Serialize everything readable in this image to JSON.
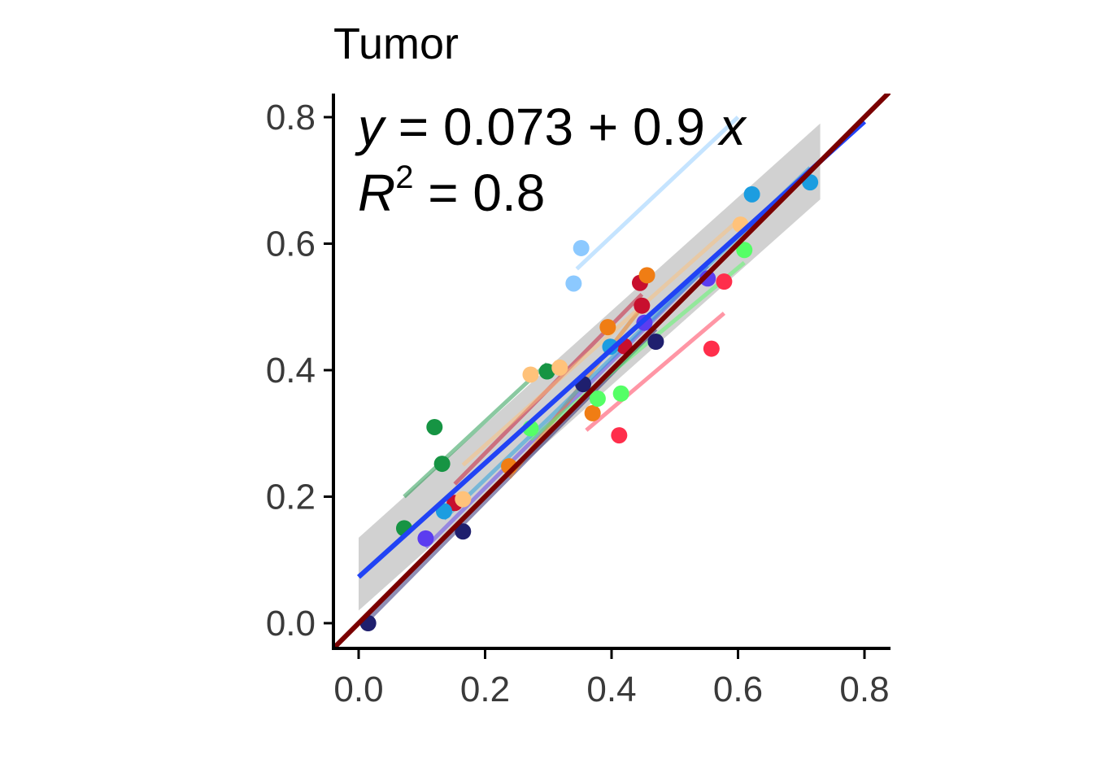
{
  "chart_data": {
    "type": "scatter",
    "title": "Tumor",
    "xlabel": "",
    "ylabel": "",
    "xlim": [
      -0.04,
      0.84
    ],
    "ylim": [
      -0.04,
      0.84
    ],
    "x_ticks": [
      "0.0",
      "0.2",
      "0.4",
      "0.6",
      "0.8"
    ],
    "y_ticks": [
      "0.0",
      "0.2",
      "0.4",
      "0.6",
      "0.8"
    ],
    "x_tick_values": [
      0.0,
      0.2,
      0.4,
      0.6,
      0.8
    ],
    "y_tick_values": [
      0.0,
      0.2,
      0.4,
      0.6,
      0.8
    ],
    "grid": false,
    "legend": "none",
    "annotation": {
      "eq_y": "y",
      "eq_equals": " = 0.073",
      "eq_plus": " + ",
      "eq_coef": "0.9 ",
      "eq_x": "x",
      "r2_r": "R",
      "r2_sup": "2",
      "r2_rest": " = 0.8"
    },
    "overall_fit": {
      "intercept": 0.073,
      "slope": 0.9,
      "x_range": [
        0.0,
        0.8
      ],
      "ci_band": {
        "x": [
          0.0,
          0.73
        ],
        "lower_at_start": 0.02,
        "upper_at_start": 0.135,
        "lower_at_end": 0.67,
        "upper_at_end": 0.79
      },
      "color": "#2143f5"
    },
    "identity_line": {
      "slope": 1,
      "intercept": 0,
      "color": "#7a0000"
    },
    "series": [
      {
        "color": "#1f1f6e",
        "points": [
          [
            0.015,
            0.0
          ],
          [
            0.165,
            0.145
          ],
          [
            0.355,
            0.378
          ],
          [
            0.47,
            0.445
          ]
        ],
        "fit": [
          [
            0.015,
            0.005
          ],
          [
            0.47,
            0.465
          ]
        ]
      },
      {
        "color": "#169443",
        "points": [
          [
            0.072,
            0.15
          ],
          [
            0.12,
            0.31
          ],
          [
            0.132,
            0.252
          ],
          [
            0.298,
            0.398
          ]
        ],
        "fit": [
          [
            0.072,
            0.2
          ],
          [
            0.298,
            0.41
          ]
        ]
      },
      {
        "color": "#5b3df0",
        "points": [
          [
            0.106,
            0.134
          ],
          [
            0.452,
            0.475
          ],
          [
            0.552,
            0.545
          ]
        ],
        "fit": [
          [
            0.106,
            0.12
          ],
          [
            0.552,
            0.565
          ]
        ]
      },
      {
        "color": "#c80f2e",
        "points": [
          [
            0.152,
            0.19
          ],
          [
            0.42,
            0.438
          ],
          [
            0.445,
            0.538
          ],
          [
            0.448,
            0.502
          ]
        ],
        "fit": [
          [
            0.152,
            0.22
          ],
          [
            0.448,
            0.52
          ]
        ]
      },
      {
        "color": "#f07d14",
        "points": [
          [
            0.238,
            0.248
          ],
          [
            0.37,
            0.332
          ],
          [
            0.394,
            0.468
          ],
          [
            0.456,
            0.55
          ]
        ],
        "fit": [
          [
            0.238,
            0.23
          ],
          [
            0.456,
            0.51
          ]
        ]
      },
      {
        "color": "#ffc27a",
        "points": [
          [
            0.165,
            0.196
          ],
          [
            0.272,
            0.393
          ],
          [
            0.318,
            0.404
          ],
          [
            0.604,
            0.63
          ]
        ],
        "fit": [
          [
            0.165,
            0.25
          ],
          [
            0.604,
            0.64
          ]
        ]
      },
      {
        "color": "#ff2e4b",
        "points": [
          [
            0.412,
            0.297
          ],
          [
            0.558,
            0.434
          ],
          [
            0.578,
            0.54
          ]
        ],
        "fit": [
          [
            0.36,
            0.305
          ],
          [
            0.578,
            0.49
          ]
        ]
      },
      {
        "color": "#55ff66",
        "points": [
          [
            0.272,
            0.308
          ],
          [
            0.378,
            0.355
          ],
          [
            0.415,
            0.363
          ],
          [
            0.61,
            0.59
          ]
        ],
        "fit": [
          [
            0.272,
            0.29
          ],
          [
            0.61,
            0.57
          ]
        ]
      },
      {
        "color": "#1c9de0",
        "points": [
          [
            0.135,
            0.177
          ],
          [
            0.398,
            0.437
          ],
          [
            0.622,
            0.678
          ],
          [
            0.714,
            0.697
          ]
        ],
        "fit": [
          [
            0.135,
            0.165
          ],
          [
            0.714,
            0.72
          ]
        ]
      },
      {
        "color": "#8cc9ff",
        "points": [
          [
            0.34,
            0.537
          ],
          [
            0.352,
            0.593
          ]
        ],
        "fit": [
          [
            0.345,
            0.56
          ],
          [
            0.6,
            0.8
          ]
        ]
      }
    ]
  }
}
